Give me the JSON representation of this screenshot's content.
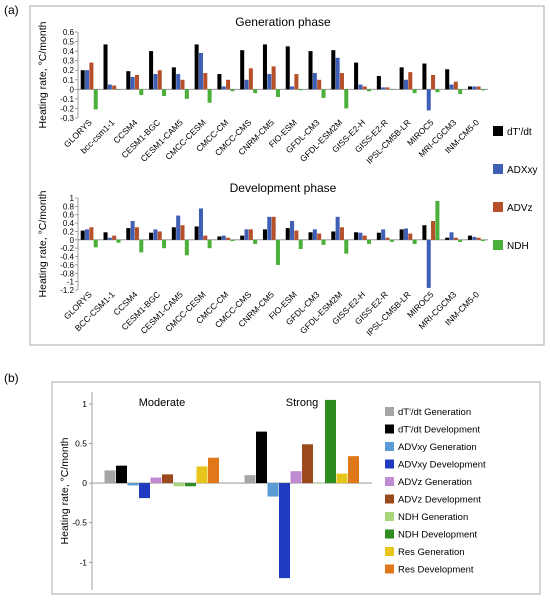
{
  "panel_labels": {
    "a": "(a)",
    "b": "(b)"
  },
  "colors": {
    "dTdt": "#000000",
    "ADXxy": "#3f5fb4",
    "ADVz": "#b5502b",
    "NDH": "#4caf3a",
    "b": [
      "#a6a6a6",
      "#000000",
      "#5b9bd5",
      "#1f3bbf",
      "#c08bd0",
      "#9b4a1b",
      "#a8d67a",
      "#2e8b1e",
      "#e8c51a",
      "#e0781a"
    ]
  },
  "chart_data": [
    {
      "type": "bar",
      "title": "Generation phase",
      "ylabel": "Heating rate, °C/month",
      "ylim": [
        -0.3,
        0.6
      ],
      "yticks": [
        -0.3,
        -0.2,
        -0.1,
        0,
        0.1,
        0.2,
        0.3,
        0.4,
        0.5,
        0.6
      ],
      "tick_labels": [
        "-0.3",
        "-0.2",
        "-0.1",
        "0",
        "0.1",
        "0.2",
        "0.3",
        "0.4",
        "0.5",
        "0.6"
      ],
      "grid": false,
      "legend_position": "right",
      "categories": [
        "GLORYS",
        "bcc-csm1-1",
        "CCSM4",
        "CESM1-BGC",
        "CESM1-CAM5",
        "CMCC-CESM",
        "CMCC-CM",
        "CMCC-CMS",
        "CNRM-CM5",
        "FIO-ESM",
        "GFDL-CM3",
        "GFDL-ESM2M",
        "GISS-E2-H",
        "GISS-E2-R",
        "IPSL-CM5B-LR",
        "MIROC5",
        "MRI-CGCM3",
        "INM-CM5-0"
      ],
      "series": [
        {
          "name": "dT'/dt",
          "values": [
            0.2,
            0.47,
            0.19,
            0.4,
            0.23,
            0.47,
            0.16,
            0.41,
            0.47,
            0.45,
            0.4,
            0.41,
            0.28,
            0.14,
            0.23,
            0.27,
            0.21,
            0.03
          ]
        },
        {
          "name": "ADXxy",
          "values": [
            0.2,
            0.05,
            0.13,
            0.16,
            0.16,
            0.38,
            0.03,
            0.1,
            0.16,
            0.03,
            0.17,
            0.33,
            0.05,
            0.02,
            0.1,
            -0.22,
            0.05,
            0.03
          ]
        },
        {
          "name": "ADVz",
          "values": [
            0.28,
            0.04,
            0.15,
            0.2,
            0.1,
            0.17,
            0.1,
            0.22,
            0.24,
            0.16,
            0.1,
            0.17,
            0.03,
            0.02,
            0.18,
            0.15,
            0.08,
            0.03
          ]
        },
        {
          "name": "NDH",
          "values": [
            -0.21,
            0.0,
            -0.06,
            -0.07,
            -0.1,
            -0.14,
            -0.02,
            -0.04,
            -0.08,
            -0.01,
            -0.09,
            -0.2,
            -0.02,
            0.0,
            -0.04,
            -0.03,
            -0.05,
            -0.01
          ]
        }
      ]
    },
    {
      "type": "bar",
      "title": "Development phase",
      "ylabel": "Heating rate, °C/month",
      "ylim": [
        -1.2,
        1
      ],
      "yticks": [
        -1.2,
        -1,
        -0.8,
        -0.6,
        -0.4,
        -0.2,
        0,
        0.2,
        0.4,
        0.6,
        0.8,
        1
      ],
      "tick_labels": [
        "-1.2",
        "-1",
        "-0.8",
        "-0.6",
        "-0.4",
        "-0.2",
        "0",
        "0.2",
        "0.4",
        "0.6",
        "0.8",
        "1"
      ],
      "grid": false,
      "categories": [
        "GLORYS",
        "BCC-CSM1-1",
        "CCSM4",
        "CESM1-BGC",
        "CESM1-CAM5",
        "CMCC-CESM",
        "CMCC-CM",
        "CMCC-CMS",
        "CNRM-CM5",
        "FIO-ESM",
        "GFDL-CM3",
        "GFDL-ESM2M",
        "GISS-E2-H",
        "GISS-E2-R",
        "IPSL-CM5B-LR",
        "MIROC5",
        "MRI-CGCM3",
        "INM-CM5-0"
      ],
      "series": [
        {
          "name": "dT'/dt",
          "values": [
            0.22,
            0.18,
            0.28,
            0.17,
            0.3,
            0.32,
            0.08,
            0.1,
            0.25,
            0.28,
            0.18,
            0.2,
            0.18,
            0.17,
            0.25,
            0.35,
            0.05,
            0.1
          ]
        },
        {
          "name": "ADXxy",
          "values": [
            0.25,
            0.05,
            0.45,
            0.25,
            0.58,
            0.75,
            0.1,
            0.25,
            0.55,
            0.45,
            0.25,
            0.55,
            0.17,
            0.25,
            0.27,
            -1.15,
            0.18,
            0.07
          ]
        },
        {
          "name": "ADVz",
          "values": [
            0.3,
            0.1,
            0.3,
            0.2,
            0.35,
            0.1,
            0.05,
            0.25,
            0.55,
            0.22,
            0.15,
            0.3,
            0.1,
            0.05,
            0.15,
            0.45,
            0.05,
            0.05
          ]
        },
        {
          "name": "NDH",
          "values": [
            -0.18,
            -0.07,
            -0.3,
            -0.2,
            -0.37,
            -0.2,
            -0.03,
            -0.1,
            -0.6,
            -0.22,
            -0.12,
            -0.33,
            -0.1,
            -0.05,
            -0.1,
            0.93,
            -0.05,
            -0.03
          ]
        }
      ]
    },
    {
      "type": "bar",
      "ylabel": "Heating rate, °C/month",
      "ylim": [
        -1.35,
        1.15
      ],
      "yticks": [
        -1,
        -0.5,
        0,
        0.5,
        1
      ],
      "tick_labels": [
        "-1",
        "-0.5",
        "0",
        "0.5",
        "1"
      ],
      "grid": false,
      "legend_position": "right",
      "categories": [
        "Moderate",
        "Strong"
      ],
      "series": [
        {
          "name": "dT'/dt Generation",
          "values": [
            0.16,
            0.1
          ]
        },
        {
          "name": "dT'/dt Development",
          "values": [
            0.22,
            0.65
          ]
        },
        {
          "name": "ADVxy Generation",
          "values": [
            -0.03,
            -0.17
          ]
        },
        {
          "name": "ADVxy Development",
          "values": [
            -0.19,
            -1.2
          ]
        },
        {
          "name": "ADVz Generation",
          "values": [
            0.07,
            0.15
          ]
        },
        {
          "name": "ADVz Development",
          "values": [
            0.11,
            0.49
          ]
        },
        {
          "name": "NDH Generation",
          "values": [
            -0.04,
            0.0
          ]
        },
        {
          "name": "NDH Development",
          "values": [
            -0.04,
            1.05
          ]
        },
        {
          "name": "Res Generation",
          "values": [
            0.21,
            0.12
          ]
        },
        {
          "name": "Res Development",
          "values": [
            0.32,
            0.34
          ]
        }
      ]
    }
  ]
}
